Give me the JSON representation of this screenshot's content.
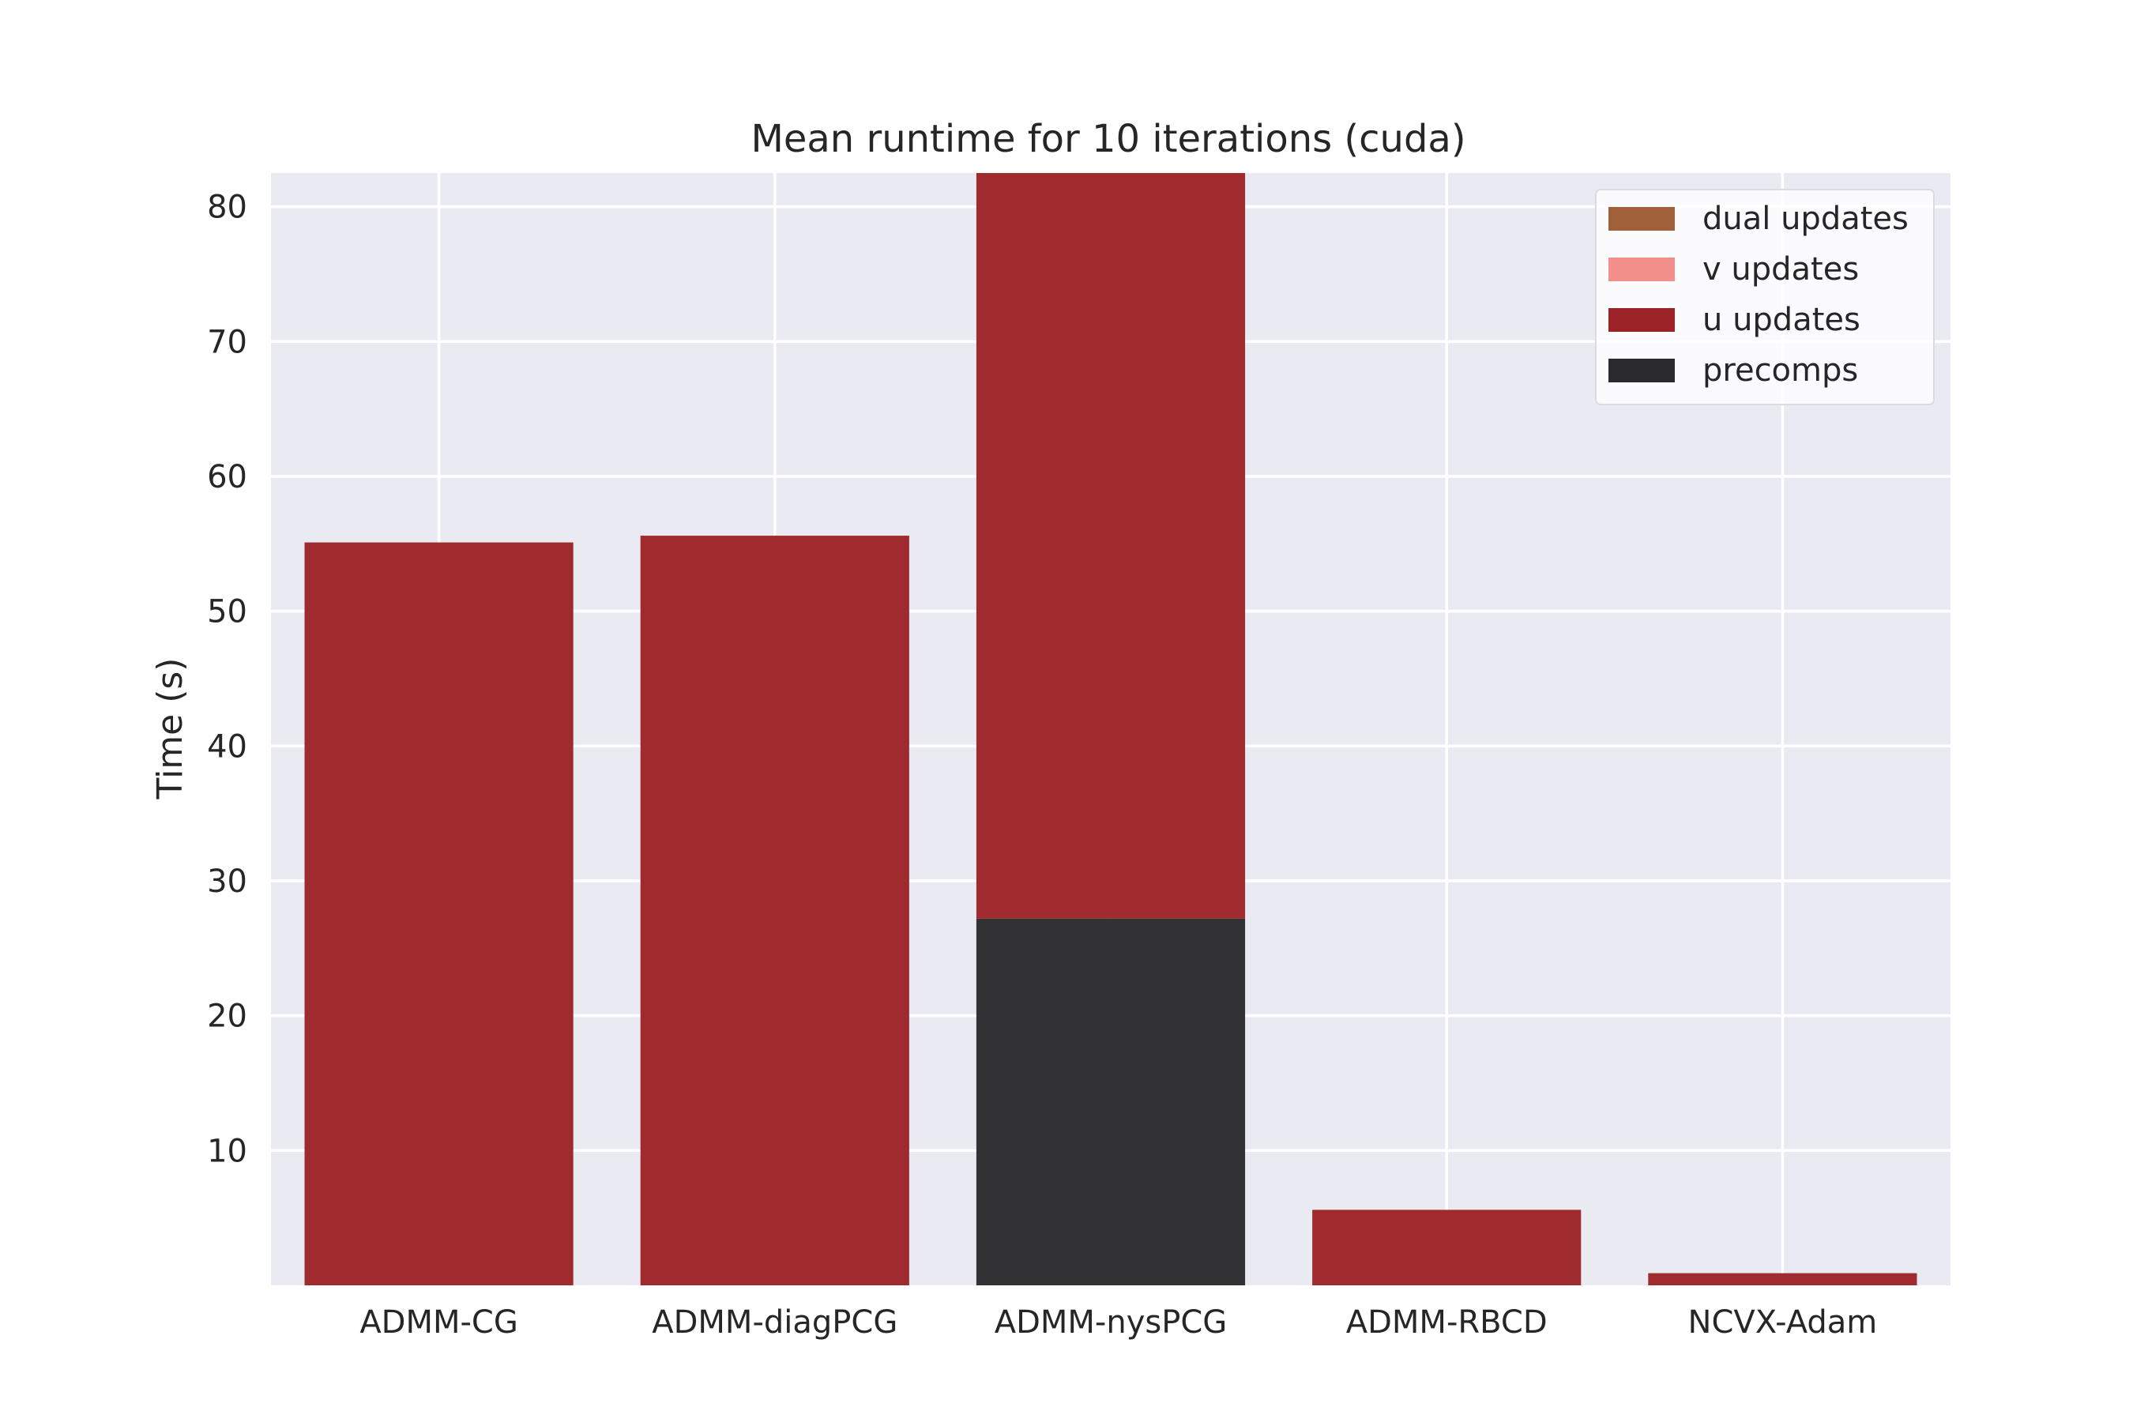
{
  "chart_data": {
    "type": "bar",
    "stacked": true,
    "title": "Mean runtime for 10 iterations (cuda)",
    "xlabel": "",
    "ylabel": "Time (s)",
    "ylim": [
      0,
      82.5
    ],
    "yticks": [
      10,
      20,
      30,
      40,
      50,
      60,
      70,
      80
    ],
    "grid": true,
    "legend_position": "top-right",
    "categories": [
      "ADMM-CG",
      "ADMM-diagPCG",
      "ADMM-nysPCG",
      "ADMM-RBCD",
      "NCVX-Adam"
    ],
    "series": [
      {
        "name": "precomps",
        "color": "#2a2a2c",
        "values": [
          0,
          0,
          27.2,
          0,
          0
        ]
      },
      {
        "name": "u updates",
        "color": "#9b2226",
        "values": [
          55.1,
          55.6,
          55.3,
          5.6,
          0.9
        ]
      },
      {
        "name": "v updates",
        "color": "#f28f8a",
        "values": [
          0,
          0,
          0,
          0,
          0
        ]
      },
      {
        "name": "dual updates",
        "color": "#a0603a",
        "values": [
          0,
          0,
          0,
          0,
          0
        ]
      }
    ],
    "legend_order": [
      "dual updates",
      "v updates",
      "u updates",
      "precomps"
    ],
    "background_color": "#eaeaf2"
  }
}
